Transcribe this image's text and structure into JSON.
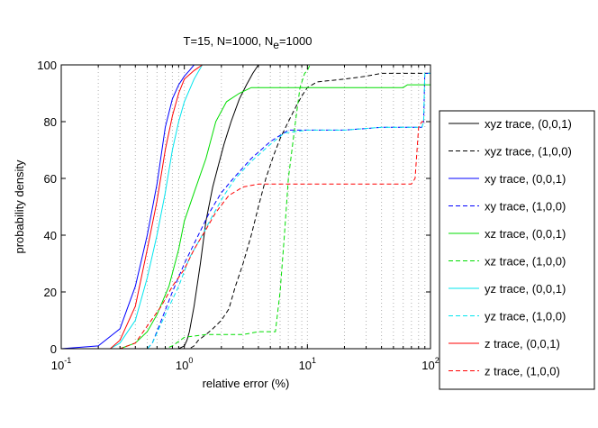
{
  "chart_data": {
    "type": "line",
    "title": {
      "main": "T=15, N=1000, N",
      "subscript": "e",
      "suffix": "=1000"
    },
    "xlabel": "relative error (%)",
    "ylabel": "probability density",
    "xscale": "log",
    "xlim": [
      0.1,
      100
    ],
    "ylim": [
      0,
      100
    ],
    "grid": "x-minor-dotted",
    "x_ticks": [
      {
        "value": 0.1,
        "base": "10",
        "exp": "-1"
      },
      {
        "value": 1,
        "base": "10",
        "exp": "0"
      },
      {
        "value": 10,
        "base": "10",
        "exp": "1"
      },
      {
        "value": 100,
        "base": "10",
        "exp": "2"
      }
    ],
    "y_ticks": [
      {
        "value": 0,
        "label": "0"
      },
      {
        "value": 20,
        "label": "20"
      },
      {
        "value": 40,
        "label": "40"
      },
      {
        "value": 60,
        "label": "60"
      },
      {
        "value": 80,
        "label": "80"
      },
      {
        "value": 100,
        "label": "100"
      }
    ],
    "legend_position": "outside-right",
    "series": [
      {
        "name": "xyz trace, (0,0,1)",
        "color": "#000000",
        "dash": "solid",
        "points": [
          [
            0.1,
            0
          ],
          [
            0.9,
            0
          ],
          [
            1.0,
            1
          ],
          [
            1.05,
            3
          ],
          [
            1.1,
            6
          ],
          [
            1.2,
            15
          ],
          [
            1.35,
            30
          ],
          [
            1.5,
            45
          ],
          [
            1.7,
            57
          ],
          [
            1.9,
            65
          ],
          [
            2.1,
            72
          ],
          [
            2.4,
            80
          ],
          [
            2.8,
            88
          ],
          [
            3.2,
            93
          ],
          [
            3.6,
            97
          ],
          [
            4.0,
            100
          ]
        ]
      },
      {
        "name": "xyz trace, (1,0,0)",
        "color": "#000000",
        "dash": "dashed",
        "points": [
          [
            0.1,
            0
          ],
          [
            1.1,
            0
          ],
          [
            1.2,
            1
          ],
          [
            1.3,
            3
          ],
          [
            1.5,
            5
          ],
          [
            1.7,
            7
          ],
          [
            2.0,
            10
          ],
          [
            2.3,
            14
          ],
          [
            2.6,
            22
          ],
          [
            3.0,
            30
          ],
          [
            3.5,
            40
          ],
          [
            4.0,
            50
          ],
          [
            4.6,
            60
          ],
          [
            5.3,
            68
          ],
          [
            6.0,
            74
          ],
          [
            7.0,
            80
          ],
          [
            8.0,
            85
          ],
          [
            9.0,
            89
          ],
          [
            10,
            92
          ],
          [
            12,
            94
          ],
          [
            20,
            95
          ],
          [
            30,
            96
          ],
          [
            40,
            97
          ],
          [
            100,
            97
          ]
        ]
      },
      {
        "name": "xy trace, (0,0,1)",
        "color": "#0000ff",
        "dash": "solid",
        "points": [
          [
            0.1,
            0
          ],
          [
            0.2,
            1
          ],
          [
            0.3,
            7
          ],
          [
            0.4,
            22
          ],
          [
            0.5,
            40
          ],
          [
            0.6,
            58
          ],
          [
            0.7,
            78
          ],
          [
            0.8,
            88
          ],
          [
            0.9,
            93
          ],
          [
            1.0,
            96
          ],
          [
            1.1,
            98
          ],
          [
            1.2,
            100
          ]
        ]
      },
      {
        "name": "xy trace, (1,0,0)",
        "color": "#0000ff",
        "dash": "dashed",
        "points": [
          [
            0.1,
            0
          ],
          [
            0.5,
            0
          ],
          [
            0.55,
            2
          ],
          [
            0.65,
            10
          ],
          [
            0.8,
            20
          ],
          [
            1.0,
            30
          ],
          [
            1.3,
            40
          ],
          [
            1.6,
            48
          ],
          [
            2.0,
            55
          ],
          [
            2.5,
            60
          ],
          [
            3.5,
            67
          ],
          [
            5,
            73
          ],
          [
            7,
            77
          ],
          [
            10,
            77
          ],
          [
            20,
            77
          ],
          [
            40,
            78
          ],
          [
            85,
            78
          ],
          [
            88,
            80
          ],
          [
            90,
            97
          ],
          [
            100,
            97
          ]
        ]
      },
      {
        "name": "xz trace, (0,0,1)",
        "color": "#00dd00",
        "dash": "solid",
        "points": [
          [
            0.1,
            0
          ],
          [
            0.3,
            0
          ],
          [
            0.4,
            2
          ],
          [
            0.5,
            6
          ],
          [
            0.6,
            12
          ],
          [
            0.75,
            22
          ],
          [
            0.9,
            35
          ],
          [
            1.0,
            45
          ],
          [
            1.2,
            55
          ],
          [
            1.5,
            67
          ],
          [
            1.8,
            80
          ],
          [
            2.2,
            87
          ],
          [
            2.8,
            90
          ],
          [
            3.5,
            92
          ],
          [
            5,
            92
          ],
          [
            10,
            92
          ],
          [
            20,
            92
          ],
          [
            40,
            92
          ],
          [
            60,
            92
          ],
          [
            65,
            93
          ],
          [
            100,
            93
          ]
        ]
      },
      {
        "name": "xz trace, (1,0,0)",
        "color": "#00dd00",
        "dash": "dashed",
        "points": [
          [
            0.1,
            0
          ],
          [
            0.7,
            0
          ],
          [
            0.8,
            1
          ],
          [
            1.0,
            4
          ],
          [
            1.5,
            5
          ],
          [
            2.0,
            5
          ],
          [
            3.0,
            5
          ],
          [
            4.0,
            6
          ],
          [
            5.5,
            6
          ],
          [
            6.0,
            20
          ],
          [
            6.5,
            40
          ],
          [
            7.0,
            60
          ],
          [
            8.0,
            80
          ],
          [
            8.7,
            92
          ],
          [
            9.5,
            97
          ],
          [
            10,
            98
          ],
          [
            10.5,
            100
          ]
        ]
      },
      {
        "name": "yz trace, (0,0,1)",
        "color": "#00e5ee",
        "dash": "solid",
        "points": [
          [
            0.1,
            0
          ],
          [
            0.25,
            0
          ],
          [
            0.3,
            2
          ],
          [
            0.4,
            10
          ],
          [
            0.5,
            25
          ],
          [
            0.6,
            40
          ],
          [
            0.7,
            55
          ],
          [
            0.8,
            70
          ],
          [
            0.9,
            80
          ],
          [
            1.0,
            87
          ],
          [
            1.2,
            95
          ],
          [
            1.4,
            100
          ]
        ]
      },
      {
        "name": "yz trace, (1,0,0)",
        "color": "#00e5ee",
        "dash": "dashed",
        "points": [
          [
            0.1,
            0
          ],
          [
            0.5,
            0
          ],
          [
            0.55,
            2
          ],
          [
            0.7,
            12
          ],
          [
            0.9,
            22
          ],
          [
            1.1,
            32
          ],
          [
            1.4,
            40
          ],
          [
            1.7,
            47
          ],
          [
            2.1,
            54
          ],
          [
            2.6,
            60
          ],
          [
            3.5,
            66
          ],
          [
            5,
            72
          ],
          [
            6.5,
            76
          ],
          [
            10,
            77
          ],
          [
            20,
            77
          ],
          [
            40,
            78
          ],
          [
            85,
            78
          ],
          [
            88,
            80
          ],
          [
            90,
            97
          ],
          [
            100,
            97
          ]
        ]
      },
      {
        "name": "z trace, (0,0,1)",
        "color": "#ff0000",
        "dash": "solid",
        "points": [
          [
            0.1,
            0
          ],
          [
            0.25,
            0
          ],
          [
            0.3,
            3
          ],
          [
            0.4,
            15
          ],
          [
            0.5,
            35
          ],
          [
            0.6,
            52
          ],
          [
            0.7,
            70
          ],
          [
            0.8,
            82
          ],
          [
            0.9,
            90
          ],
          [
            1.0,
            95
          ],
          [
            1.2,
            98
          ],
          [
            1.4,
            100
          ]
        ]
      },
      {
        "name": "z trace, (1,0,0)",
        "color": "#ff0000",
        "dash": "dashed",
        "points": [
          [
            0.1,
            0
          ],
          [
            0.3,
            0
          ],
          [
            0.4,
            2
          ],
          [
            0.5,
            8
          ],
          [
            0.65,
            15
          ],
          [
            0.8,
            22
          ],
          [
            1.0,
            28
          ],
          [
            1.2,
            35
          ],
          [
            1.5,
            42
          ],
          [
            1.8,
            48
          ],
          [
            2.3,
            54
          ],
          [
            3.0,
            57
          ],
          [
            4.0,
            58
          ],
          [
            10,
            58
          ],
          [
            20,
            58
          ],
          [
            40,
            58
          ],
          [
            70,
            58
          ],
          [
            75,
            60
          ],
          [
            80,
            78
          ],
          [
            85,
            80
          ],
          [
            100,
            80
          ]
        ]
      }
    ]
  }
}
